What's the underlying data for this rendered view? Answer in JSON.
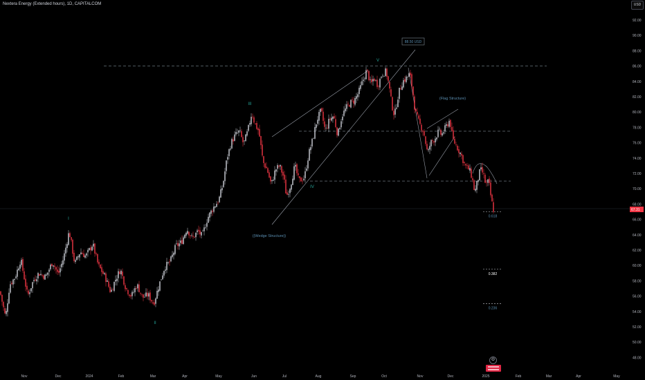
{
  "header": {
    "title": "Nextera Energy (Extended hours), 1D, CAPITALCOM",
    "currency_button": "USD"
  },
  "chart_data": {
    "type": "candlestick",
    "title": "Nextera Energy (Extended hours), 1D, CAPITALCOM",
    "currency": "USD",
    "y_ticks": [
      "92.00",
      "90.00",
      "88.00",
      "86.00",
      "84.00",
      "82.00",
      "80.00",
      "78.00",
      "76.00",
      "74.00",
      "72.00",
      "70.00",
      "68.00",
      "66.00",
      "64.00",
      "62.00",
      "60.00",
      "58.00",
      "56.00",
      "54.00",
      "52.00",
      "50.00",
      "48.00"
    ],
    "x_ticks": [
      "Nov",
      "Dec",
      "2024",
      "Feb",
      "Mar",
      "Apr",
      "May",
      "Jun",
      "Jul",
      "Aug",
      "Sep",
      "Oct",
      "Nov",
      "Dec",
      "2025",
      "Feb",
      "Mar",
      "Apr",
      "May"
    ],
    "ylim": [
      47,
      94
    ],
    "last_price": "67.31",
    "price_path": [
      [
        0,
        56.6
      ],
      [
        8,
        53.2
      ],
      [
        14,
        57.5
      ],
      [
        22,
        58.5
      ],
      [
        30,
        60.8
      ],
      [
        40,
        56.0
      ],
      [
        48,
        58.0
      ],
      [
        56,
        59.0
      ],
      [
        66,
        58.5
      ],
      [
        76,
        60.5
      ],
      [
        84,
        58.8
      ],
      [
        92,
        61.0
      ],
      [
        100,
        64.5
      ],
      [
        108,
        60.2
      ],
      [
        116,
        61.8
      ],
      [
        124,
        61.2
      ],
      [
        134,
        62.8
      ],
      [
        142,
        60.0
      ],
      [
        152,
        58.5
      ],
      [
        160,
        56.5
      ],
      [
        166,
        58.0
      ],
      [
        174,
        59.5
      ],
      [
        182,
        57.0
      ],
      [
        190,
        56.0
      ],
      [
        198,
        57.5
      ],
      [
        206,
        55.8
      ],
      [
        214,
        56.2
      ],
      [
        222,
        55.0
      ],
      [
        230,
        57.5
      ],
      [
        238,
        59.8
      ],
      [
        246,
        60.5
      ],
      [
        254,
        62.5
      ],
      [
        262,
        63.0
      ],
      [
        270,
        64.8
      ],
      [
        278,
        63.5
      ],
      [
        286,
        64.5
      ],
      [
        292,
        63.8
      ],
      [
        300,
        66.2
      ],
      [
        308,
        67.5
      ],
      [
        316,
        68.5
      ],
      [
        322,
        70.5
      ],
      [
        328,
        74.0
      ],
      [
        334,
        76.0
      ],
      [
        340,
        77.0
      ],
      [
        346,
        77.5
      ],
      [
        352,
        75.8
      ],
      [
        358,
        77.5
      ],
      [
        364,
        80.0
      ],
      [
        368,
        78.5
      ],
      [
        374,
        77.5
      ],
      [
        380,
        73.5
      ],
      [
        386,
        72.5
      ],
      [
        392,
        70.5
      ],
      [
        398,
        72.5
      ],
      [
        404,
        73.0
      ],
      [
        410,
        71.5
      ],
      [
        414,
        69.0
      ],
      [
        420,
        70.5
      ],
      [
        426,
        73.0
      ],
      [
        432,
        71.0
      ],
      [
        440,
        71.5
      ],
      [
        446,
        74.5
      ],
      [
        452,
        76.5
      ],
      [
        458,
        79.0
      ],
      [
        464,
        80.2
      ],
      [
        470,
        77.5
      ],
      [
        476,
        79.0
      ],
      [
        482,
        79.5
      ],
      [
        488,
        77.0
      ],
      [
        494,
        79.5
      ],
      [
        500,
        80.5
      ],
      [
        506,
        81.2
      ],
      [
        512,
        81.5
      ],
      [
        518,
        82.5
      ],
      [
        524,
        84.0
      ],
      [
        530,
        85.5
      ],
      [
        536,
        83.5
      ],
      [
        540,
        84.5
      ],
      [
        546,
        83.5
      ],
      [
        552,
        85.0
      ],
      [
        558,
        85.3
      ],
      [
        562,
        83.5
      ],
      [
        566,
        81.0
      ],
      [
        570,
        79.5
      ],
      [
        576,
        82.5
      ],
      [
        582,
        84.0
      ],
      [
        588,
        84.5
      ],
      [
        592,
        85.0
      ],
      [
        596,
        83.0
      ],
      [
        600,
        80.0
      ],
      [
        606,
        78.5
      ],
      [
        612,
        77.5
      ],
      [
        618,
        74.5
      ],
      [
        622,
        76.0
      ],
      [
        628,
        76.5
      ],
      [
        634,
        77.5
      ],
      [
        638,
        77.0
      ],
      [
        644,
        78.0
      ],
      [
        650,
        79.0
      ],
      [
        654,
        76.5
      ],
      [
        660,
        75.5
      ],
      [
        666,
        74.5
      ],
      [
        672,
        73.0
      ],
      [
        678,
        72.5
      ],
      [
        682,
        71.5
      ],
      [
        686,
        69.5
      ],
      [
        690,
        71.0
      ],
      [
        694,
        72.5
      ],
      [
        698,
        72.0
      ],
      [
        702,
        70.5
      ],
      [
        706,
        71.0
      ],
      [
        710,
        68.5
      ],
      [
        713,
        67.3
      ]
    ],
    "horizontal_levels": [
      86.0,
      77.5,
      71.0
    ],
    "fib_levels": [
      {
        "label": "0.618",
        "value": 67.0
      },
      {
        "label": "0.382",
        "value": 59.5
      },
      {
        "label": "0.236",
        "value": 55.0
      }
    ],
    "annotations": {
      "callout": "88.50 USD",
      "wave_labels": [
        "I",
        "II",
        "III",
        "IV",
        "V"
      ],
      "wedge_label": "((Wedge Structure))",
      "flag_label": "(Flag Structure)"
    }
  }
}
